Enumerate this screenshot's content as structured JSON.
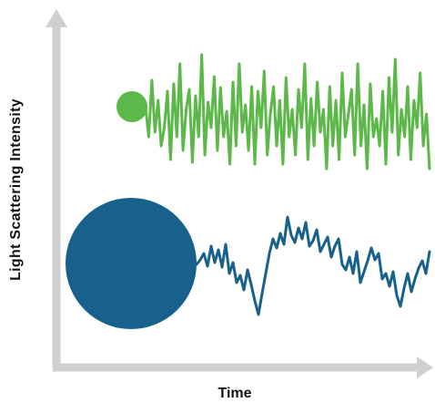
{
  "axes": {
    "y_label": "Light Scattering Intensity",
    "x_label": "Time",
    "color": "#cfcfcf"
  },
  "traces": [
    {
      "name": "small-particle",
      "color": "#5db84a",
      "particle_size": "small",
      "fluctuation": "fast"
    },
    {
      "name": "large-particle",
      "color": "#17618c",
      "particle_size": "large",
      "fluctuation": "slow"
    }
  ]
}
